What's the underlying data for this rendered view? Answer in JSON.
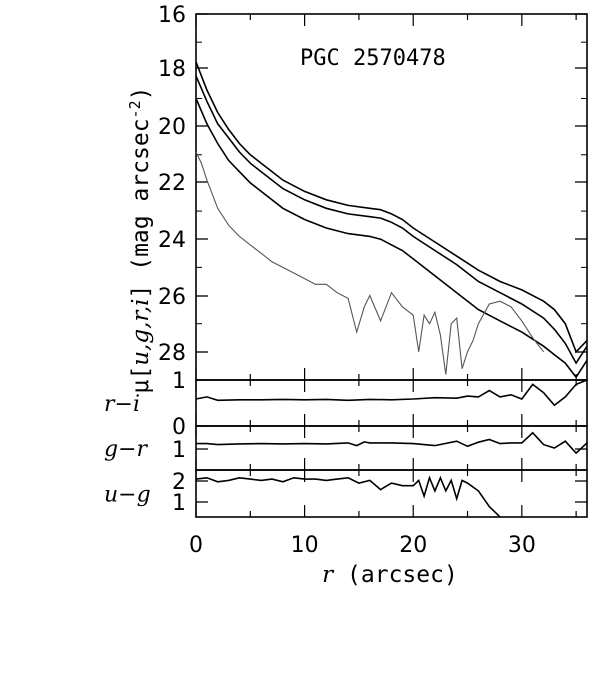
{
  "chart_data": [
    {
      "type": "line",
      "panel": "surface-brightness",
      "title": "PGC 2570478",
      "ylabel_prefix": "μ[",
      "ylabel_vars": "u,g,r,i",
      "ylabel_suffix": "] (mag arcsec",
      "ylabel_exp": "-2",
      "ylabel_close": ")",
      "xlim": [
        0,
        36
      ],
      "ylim": [
        29,
        16
      ],
      "yticks": [
        "16",
        "18",
        "20",
        "22",
        "24",
        "26",
        "28"
      ],
      "series": [
        {
          "color": "#000000",
          "x": [
            0,
            1,
            2,
            3,
            4,
            5,
            6,
            8,
            10,
            12,
            14,
            16,
            17,
            18,
            19,
            20,
            22,
            24,
            26,
            28,
            30,
            32,
            33,
            34,
            35,
            36
          ],
          "y": [
            17.7,
            18.7,
            19.5,
            20.1,
            20.6,
            21.0,
            21.3,
            21.9,
            22.3,
            22.6,
            22.8,
            22.9,
            22.95,
            23.1,
            23.3,
            23.6,
            24.1,
            24.6,
            25.1,
            25.5,
            25.8,
            26.2,
            26.5,
            27.0,
            28.0,
            27.6
          ]
        },
        {
          "color": "#000000",
          "x": [
            0,
            1,
            2,
            3,
            4,
            5,
            6,
            8,
            10,
            12,
            14,
            16,
            17,
            18,
            19,
            20,
            22,
            24,
            26,
            28,
            30,
            32,
            33,
            34,
            35,
            36
          ],
          "y": [
            18.2,
            19.1,
            19.9,
            20.4,
            20.9,
            21.3,
            21.6,
            22.2,
            22.6,
            22.9,
            23.1,
            23.2,
            23.25,
            23.4,
            23.6,
            23.9,
            24.4,
            24.9,
            25.5,
            25.9,
            26.3,
            26.8,
            27.2,
            27.7,
            28.4,
            27.8
          ]
        },
        {
          "color": "#000000",
          "x": [
            0,
            1,
            2,
            3,
            4,
            5,
            6,
            8,
            10,
            12,
            14,
            16,
            17,
            18,
            19,
            20,
            22,
            24,
            26,
            28,
            30,
            32,
            33,
            34,
            35,
            36
          ],
          "y": [
            19.0,
            19.9,
            20.6,
            21.2,
            21.6,
            22.0,
            22.3,
            22.9,
            23.3,
            23.6,
            23.8,
            23.9,
            24.0,
            24.2,
            24.4,
            24.7,
            25.3,
            25.9,
            26.5,
            26.9,
            27.3,
            27.8,
            28.1,
            28.4,
            28.9,
            28.3
          ]
        },
        {
          "color": "#555555",
          "x": [
            0,
            0.5,
            1,
            2,
            3,
            4,
            5,
            6,
            7,
            8,
            9,
            10,
            11,
            12,
            13,
            14,
            14.8,
            15.5,
            16,
            17,
            18,
            19,
            20,
            20.5,
            21,
            21.5,
            22,
            22.5,
            23,
            23.5,
            24,
            24.5,
            25,
            25.5,
            26,
            27,
            28,
            29,
            30,
            31,
            32
          ],
          "y": [
            20.9,
            21.3,
            21.9,
            22.9,
            23.5,
            23.9,
            24.2,
            24.5,
            24.8,
            25.0,
            25.2,
            25.4,
            25.6,
            25.6,
            25.9,
            26.1,
            27.3,
            26.4,
            26.0,
            26.9,
            25.9,
            26.4,
            26.7,
            28.0,
            26.7,
            27.0,
            26.6,
            27.4,
            28.8,
            27.0,
            26.8,
            28.6,
            28.0,
            27.6,
            27.0,
            26.3,
            26.2,
            26.4,
            26.9,
            27.5,
            28.0
          ]
        }
      ]
    },
    {
      "type": "line",
      "panel": "r-i",
      "ylabel": "r−i",
      "ylim": [
        -0.1,
        1.0
      ],
      "yticks": [
        "1",
        "0"
      ],
      "series": [
        {
          "color": "#000000",
          "x": [
            0,
            1,
            2,
            4,
            6,
            8,
            10,
            12,
            14,
            16,
            18,
            20,
            22,
            24,
            25,
            26,
            27,
            28,
            29,
            30,
            31,
            32,
            33,
            34,
            35,
            36
          ],
          "y": [
            0.45,
            0.5,
            0.42,
            0.43,
            0.43,
            0.44,
            0.43,
            0.44,
            0.42,
            0.44,
            0.43,
            0.45,
            0.48,
            0.47,
            0.52,
            0.5,
            0.65,
            0.5,
            0.55,
            0.45,
            0.8,
            0.6,
            0.3,
            0.5,
            0.8,
            1.0
          ]
        }
      ]
    },
    {
      "type": "line",
      "panel": "g-r",
      "ylabel": "g−r",
      "ylim": [
        0,
        1.3
      ],
      "yticks": [
        "1"
      ],
      "series": [
        {
          "color": "#000000",
          "x": [
            0,
            1,
            2,
            4,
            6,
            8,
            10,
            12,
            14,
            14.8,
            15.5,
            16,
            18,
            20,
            22,
            24,
            25,
            26,
            27,
            28,
            29,
            30,
            31,
            32,
            33,
            34,
            35,
            36
          ],
          "y": [
            0.78,
            0.78,
            0.75,
            0.77,
            0.78,
            0.77,
            0.78,
            0.77,
            0.8,
            0.72,
            0.83,
            0.8,
            0.8,
            0.78,
            0.72,
            0.85,
            0.7,
            0.82,
            0.9,
            0.78,
            0.8,
            0.8,
            1.1,
            0.75,
            0.65,
            0.85,
            0.5,
            0.8
          ]
        }
      ]
    },
    {
      "type": "line",
      "panel": "u-g",
      "ylabel": "u−g",
      "ylim": [
        0.5,
        2.3
      ],
      "yticks": [
        "2",
        "1"
      ],
      "xticks": [
        "0",
        "10",
        "20",
        "30"
      ],
      "xlabel_var": "r",
      "xlabel_unit": "(arcsec)",
      "series": [
        {
          "color": "#000000",
          "x": [
            0,
            1,
            2,
            3,
            4,
            5,
            6,
            7,
            8,
            9,
            10,
            11,
            12,
            13,
            14,
            15,
            16,
            17,
            18,
            19,
            20,
            20.5,
            21,
            21.5,
            22,
            22.5,
            23,
            23.5,
            24,
            24.5,
            25,
            26,
            27,
            28
          ],
          "y": [
            1.95,
            2.0,
            1.85,
            1.9,
            2.0,
            1.95,
            1.9,
            1.95,
            1.85,
            2.0,
            1.95,
            1.95,
            1.9,
            1.95,
            2.0,
            1.8,
            1.9,
            1.55,
            1.8,
            1.7,
            1.7,
            1.9,
            1.3,
            2.0,
            1.5,
            2.0,
            1.5,
            1.9,
            1.2,
            1.9,
            1.8,
            1.5,
            0.9,
            0.5
          ]
        }
      ]
    }
  ]
}
